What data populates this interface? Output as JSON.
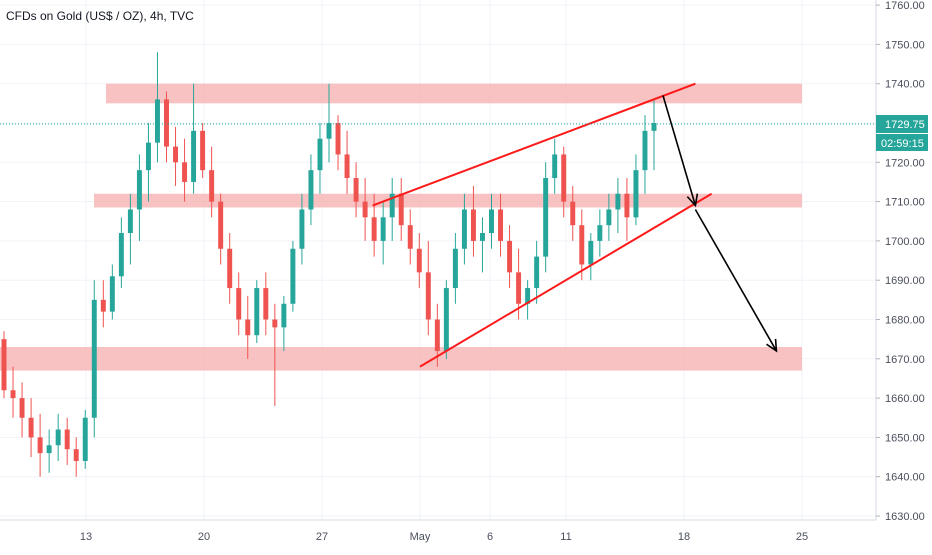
{
  "header": {
    "title": "CFDs on Gold (US$ / OZ), 4h, TVC"
  },
  "price_axis": {
    "ticks": [
      "1760.00",
      "1750.00",
      "1740.00",
      "1730.00",
      "1720.00",
      "1710.00",
      "1700.00",
      "1690.00",
      "1680.00",
      "1670.00",
      "1660.00",
      "1650.00",
      "1640.00",
      "1630.00"
    ],
    "current_price": "1729.75",
    "countdown": "02:59:15"
  },
  "time_axis": {
    "labels": [
      "13",
      "20",
      "27",
      "May",
      "6",
      "11",
      "18",
      "25"
    ]
  },
  "colors": {
    "up": "#26a69a",
    "down": "#ef5350",
    "zone": "#f7a8a8",
    "trendline": "#ff1a1a",
    "arrow": "#000000",
    "price_line": "#26a69a"
  },
  "chart_data": {
    "type": "candlestick",
    "title": "CFDs on Gold (US$ / OZ), 4h, TVC",
    "ylim": [
      1630,
      1760
    ],
    "x_axis": [
      "13",
      "20",
      "27",
      "May",
      "6",
      "11",
      "18",
      "25"
    ],
    "last_price": 1729.75,
    "ohlc_series": [
      [
        1675,
        1677,
        1660,
        1662
      ],
      [
        1662,
        1668,
        1655,
        1660
      ],
      [
        1660,
        1664,
        1650,
        1655
      ],
      [
        1655,
        1660,
        1645,
        1650
      ],
      [
        1650,
        1656,
        1640,
        1646
      ],
      [
        1646,
        1652,
        1641,
        1648
      ],
      [
        1648,
        1656,
        1644,
        1652
      ],
      [
        1652,
        1655,
        1643,
        1647
      ],
      [
        1647,
        1650,
        1640,
        1644
      ],
      [
        1644,
        1657,
        1642,
        1655
      ],
      [
        1655,
        1690,
        1650,
        1685
      ],
      [
        1685,
        1690,
        1678,
        1682
      ],
      [
        1682,
        1694,
        1680,
        1691
      ],
      [
        1691,
        1706,
        1688,
        1702
      ],
      [
        1702,
        1712,
        1694,
        1708
      ],
      [
        1708,
        1722,
        1700,
        1718
      ],
      [
        1718,
        1730,
        1710,
        1725
      ],
      [
        1725,
        1748,
        1720,
        1736
      ],
      [
        1736,
        1738,
        1720,
        1724
      ],
      [
        1724,
        1729,
        1714,
        1720
      ],
      [
        1720,
        1726,
        1710,
        1715
      ],
      [
        1715,
        1740,
        1712,
        1728
      ],
      [
        1728,
        1730,
        1716,
        1718
      ],
      [
        1718,
        1724,
        1706,
        1710
      ],
      [
        1710,
        1712,
        1694,
        1698
      ],
      [
        1698,
        1702,
        1684,
        1688
      ],
      [
        1688,
        1692,
        1676,
        1680
      ],
      [
        1680,
        1686,
        1670,
        1676
      ],
      [
        1676,
        1690,
        1674,
        1688
      ],
      [
        1688,
        1692,
        1676,
        1680
      ],
      [
        1680,
        1684,
        1658,
        1678
      ],
      [
        1678,
        1686,
        1672,
        1684
      ],
      [
        1684,
        1700,
        1682,
        1698
      ],
      [
        1698,
        1712,
        1694,
        1708
      ],
      [
        1708,
        1722,
        1704,
        1718
      ],
      [
        1718,
        1730,
        1712,
        1726
      ],
      [
        1726,
        1740,
        1720,
        1730
      ],
      [
        1730,
        1732,
        1718,
        1722
      ],
      [
        1722,
        1728,
        1712,
        1716
      ],
      [
        1716,
        1720,
        1706,
        1710
      ],
      [
        1710,
        1716,
        1700,
        1706
      ],
      [
        1706,
        1712,
        1696,
        1700
      ],
      [
        1700,
        1710,
        1694,
        1706
      ],
      [
        1706,
        1716,
        1700,
        1712
      ],
      [
        1712,
        1716,
        1700,
        1704
      ],
      [
        1704,
        1708,
        1694,
        1698
      ],
      [
        1698,
        1702,
        1688,
        1692
      ],
      [
        1692,
        1700,
        1676,
        1680
      ],
      [
        1680,
        1684,
        1668,
        1672
      ],
      [
        1672,
        1690,
        1670,
        1688
      ],
      [
        1688,
        1702,
        1684,
        1698
      ],
      [
        1698,
        1712,
        1694,
        1708
      ],
      [
        1708,
        1714,
        1696,
        1700
      ],
      [
        1700,
        1706,
        1692,
        1702
      ],
      [
        1702,
        1712,
        1698,
        1708
      ],
      [
        1708,
        1712,
        1696,
        1700
      ],
      [
        1700,
        1704,
        1688,
        1692
      ],
      [
        1692,
        1698,
        1680,
        1684
      ],
      [
        1684,
        1690,
        1680,
        1688
      ],
      [
        1688,
        1700,
        1684,
        1696
      ],
      [
        1696,
        1720,
        1692,
        1716
      ],
      [
        1716,
        1726,
        1712,
        1722
      ],
      [
        1722,
        1724,
        1706,
        1710
      ],
      [
        1710,
        1714,
        1700,
        1704
      ],
      [
        1704,
        1708,
        1690,
        1694
      ],
      [
        1694,
        1702,
        1690,
        1700
      ],
      [
        1700,
        1708,
        1696,
        1704
      ],
      [
        1704,
        1712,
        1700,
        1708
      ],
      [
        1708,
        1716,
        1702,
        1712
      ],
      [
        1712,
        1716,
        1700,
        1706
      ],
      [
        1706,
        1722,
        1704,
        1718
      ],
      [
        1718,
        1732,
        1712,
        1728
      ],
      [
        1728,
        1736,
        1718,
        1730
      ]
    ],
    "horizontal_zones": [
      [
        1735,
        1740
      ],
      [
        1708.5,
        1712
      ],
      [
        1667,
        1673
      ]
    ],
    "trendlines": [
      {
        "from": [
          "May 1",
          1668
        ],
        "to": [
          "May 19",
          1712
        ]
      },
      {
        "from": [
          "Apr 30",
          1709
        ],
        "to": [
          "May 18",
          1740
        ]
      }
    ],
    "forecast_arrows": [
      {
        "from": [
          "May 16",
          1737
        ],
        "to": [
          "May 18",
          1709
        ]
      },
      {
        "from": [
          "May 18",
          1708
        ],
        "to": [
          "May 23",
          1672
        ]
      }
    ]
  }
}
